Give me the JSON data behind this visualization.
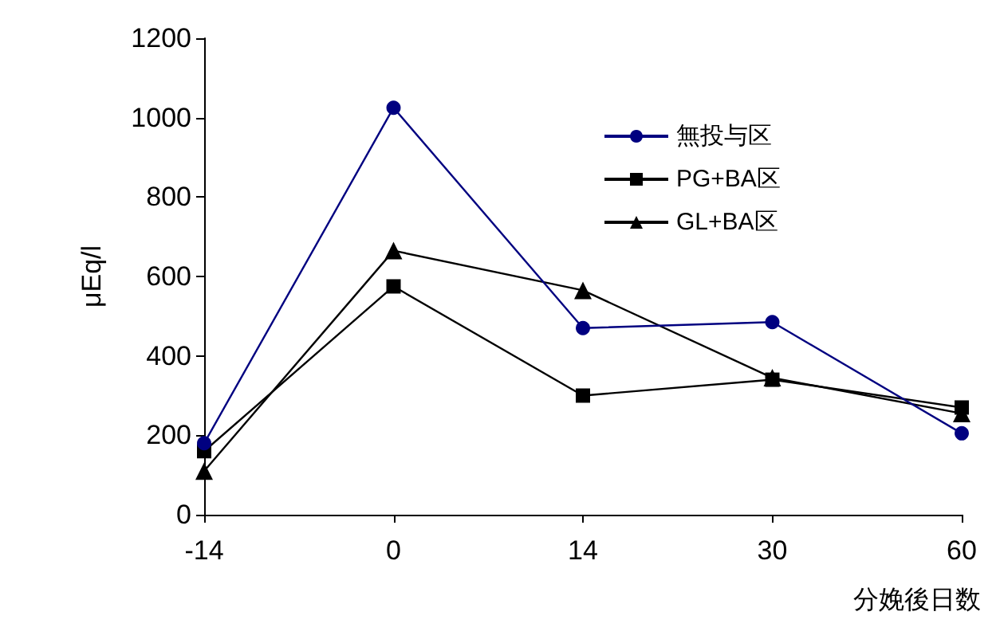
{
  "chart_data": {
    "type": "line",
    "xlabel": "分娩後日数",
    "ylabel": "μEq/l",
    "categories": [
      "-14",
      "0",
      "14",
      "30",
      "60"
    ],
    "series": [
      {
        "name": "無投与区",
        "color": "#000080",
        "marker": "circle",
        "values": [
          180,
          1025,
          470,
          485,
          205
        ]
      },
      {
        "name": "PG+BA区",
        "color": "#000000",
        "marker": "square",
        "values": [
          160,
          575,
          300,
          340,
          270
        ]
      },
      {
        "name": "GL+BA区",
        "color": "#000000",
        "marker": "triangle",
        "values": [
          110,
          665,
          565,
          345,
          255
        ]
      }
    ],
    "ylim": [
      0,
      1200
    ],
    "yticks": [
      0,
      200,
      400,
      600,
      800,
      1000,
      1200
    ],
    "grid": false,
    "legend": "top right",
    "line_style": "solid"
  }
}
